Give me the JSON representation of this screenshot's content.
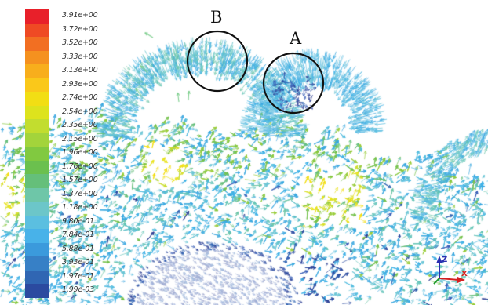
{
  "legend": {
    "labels": [
      "3.91e+00",
      "3.72e+00",
      "3.52e+00",
      "3.33e+00",
      "3.13e+00",
      "2.93e+00",
      "2.74e+00",
      "2.54e+00",
      "2.35e+00",
      "2.15e+00",
      "1.96e+00",
      "1.76e+00",
      "1.57e+00",
      "1.37e+00",
      "1.18e+00",
      "9.80e-01",
      "7.84e-01",
      "5.88e-01",
      "3.93e-01",
      "1.97e-01",
      "1.99e-03"
    ],
    "colors": [
      "#e8202a",
      "#ef4a24",
      "#f26f22",
      "#f5911f",
      "#f8ae1c",
      "#fac81a",
      "#f2de14",
      "#dde31d",
      "#c2dd2f",
      "#a3d43b",
      "#81c940",
      "#6bc04e",
      "#65bf7a",
      "#6ec6a8",
      "#6cc6c9",
      "#5bbfe0",
      "#48b2e9",
      "#3b9adc",
      "#3780c6",
      "#3066b3",
      "#2b4aa0"
    ]
  },
  "annotations": {
    "region_a": "A",
    "region_b": "B"
  },
  "triad": {
    "z_label": "Z",
    "x_label": "X"
  }
}
